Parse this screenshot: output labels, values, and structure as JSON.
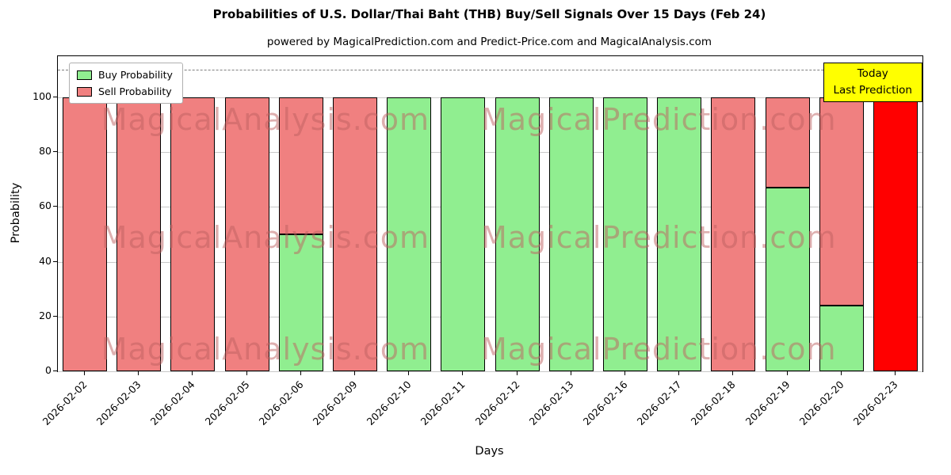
{
  "title": "Probabilities of U.S. Dollar/Thai Baht (THB) Buy/Sell Signals Over 15 Days (Feb 24)",
  "subtitle": "powered by MagicalPrediction.com and Predict-Price.com and MagicalAnalysis.com",
  "legend": {
    "buy": "Buy Probability",
    "sell": "Sell Probability"
  },
  "annotation": {
    "line1": "Today",
    "line2": "Last Prediction"
  },
  "axes": {
    "yticks": [
      0,
      20,
      40,
      60,
      80,
      100
    ],
    "dashed_line_y": 110
  },
  "colors": {
    "buy": "#90ee90",
    "sell": "#f08080",
    "today": "#ff0000",
    "annotation_bg": "#ffff00",
    "grid": "#c9c9c9"
  },
  "watermarks": [
    "MagicalAnalysis.com",
    "MagicalPrediction.com"
  ],
  "chart_data": {
    "type": "bar",
    "stacked": true,
    "title": "Probabilities of U.S. Dollar/Thai Baht (THB) Buy/Sell Signals Over 15 Days (Feb 24)",
    "xlabel": "Days",
    "ylabel": "Probability",
    "ylim": [
      0,
      115
    ],
    "grid": true,
    "legend_position": "upper left",
    "categories": [
      "2026-02-02",
      "2026-02-03",
      "2026-02-04",
      "2026-02-05",
      "2026-02-06",
      "2026-02-09",
      "2026-02-10",
      "2026-02-11",
      "2026-02-12",
      "2026-02-13",
      "2026-02-16",
      "2026-02-17",
      "2026-02-18",
      "2026-02-19",
      "2026-02-20",
      "2026-02-23"
    ],
    "series": [
      {
        "name": "Buy Probability",
        "color": "#90ee90",
        "values": [
          0,
          0,
          0,
          0,
          50,
          0,
          100,
          100,
          100,
          100,
          100,
          100,
          0,
          67,
          24,
          0
        ]
      },
      {
        "name": "Sell Probability",
        "color": "#f08080",
        "values": [
          100,
          100,
          100,
          100,
          50,
          100,
          0,
          0,
          0,
          0,
          0,
          0,
          100,
          33,
          76,
          100
        ]
      }
    ],
    "today_index": 15,
    "today_color": "#ff0000"
  }
}
